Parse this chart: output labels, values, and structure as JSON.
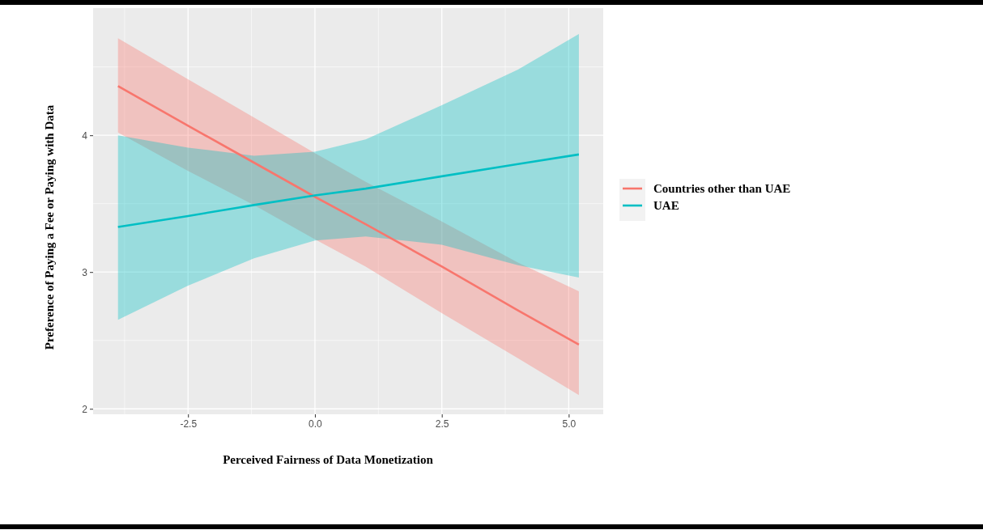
{
  "chart_data": {
    "type": "line",
    "xlabel": "Perceived Fairness of Data Monetization",
    "ylabel": "Preference of Paying a Fee or Paying with Data",
    "x": [
      -3.88,
      -2.5,
      -1.2,
      0,
      1,
      2.5,
      4,
      5.2
    ],
    "series": [
      {
        "name": "Countries other than UAE",
        "color": "#f8766d",
        "values": [
          4.36,
          4.07,
          3.8,
          3.55,
          3.35,
          3.04,
          2.72,
          2.47
        ],
        "lower": [
          4.02,
          3.74,
          3.49,
          3.24,
          3.04,
          2.7,
          2.37,
          2.1
        ],
        "upper": [
          4.71,
          4.41,
          4.13,
          3.87,
          3.66,
          3.37,
          3.07,
          2.86
        ]
      },
      {
        "name": "UAE",
        "color": "#00bfc4",
        "values": [
          3.33,
          3.41,
          3.49,
          3.56,
          3.61,
          3.7,
          3.79,
          3.86
        ],
        "lower": [
          2.65,
          2.9,
          3.1,
          3.23,
          3.26,
          3.2,
          3.05,
          2.96
        ],
        "upper": [
          4.0,
          3.91,
          3.85,
          3.88,
          3.97,
          4.22,
          4.48,
          4.74
        ]
      }
    ],
    "xlim": [
      -4.37,
      5.68
    ],
    "ylim": [
      1.96,
      4.93
    ],
    "xticks": [
      {
        "value": -2.5,
        "label": "-2.5"
      },
      {
        "value": 0,
        "label": "0.0"
      },
      {
        "value": 2.5,
        "label": "2.5"
      },
      {
        "value": 5,
        "label": "5.0"
      }
    ],
    "yticks": [
      2,
      3,
      4
    ],
    "grid": true,
    "legend": "right",
    "marker": "none",
    "line_style": "solid"
  }
}
